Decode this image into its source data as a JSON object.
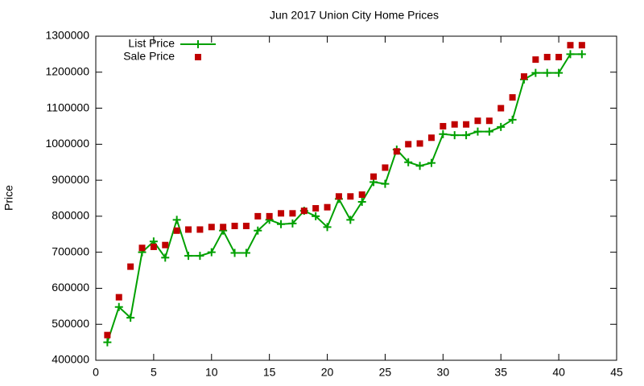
{
  "chart_data": {
    "type": "line",
    "title": "Jun 2017 Union City Home Prices",
    "y_label": "Price",
    "x": [
      1,
      2,
      3,
      4,
      5,
      6,
      7,
      8,
      9,
      10,
      11,
      12,
      13,
      14,
      15,
      16,
      17,
      18,
      19,
      20,
      21,
      22,
      23,
      24,
      25,
      26,
      27,
      28,
      29,
      30,
      31,
      32,
      33,
      34,
      35,
      36,
      37,
      38,
      39,
      40,
      41,
      42
    ],
    "series": [
      {
        "name": "List Price",
        "color": "#00a000",
        "style": "linespoints",
        "values": [
          450000,
          548000,
          518000,
          700000,
          730000,
          685000,
          790000,
          690000,
          690000,
          700000,
          760000,
          698000,
          698000,
          760000,
          790000,
          778000,
          780000,
          815000,
          800000,
          770000,
          848000,
          790000,
          840000,
          895000,
          890000,
          985000,
          950000,
          940000,
          948000,
          1028000,
          1025000,
          1025000,
          1035000,
          1035000,
          1048000,
          1068000,
          1180000,
          1198000,
          1198000,
          1198000,
          1250000,
          1250000
        ]
      },
      {
        "name": "Sale Price",
        "color": "#c00000",
        "style": "points",
        "values": [
          470000,
          575000,
          660000,
          712000,
          715000,
          720000,
          760000,
          763000,
          763000,
          770000,
          770000,
          773000,
          773000,
          800000,
          800000,
          808000,
          808000,
          815000,
          822000,
          825000,
          855000,
          855000,
          860000,
          910000,
          935000,
          980000,
          1000000,
          1002000,
          1018000,
          1050000,
          1055000,
          1055000,
          1065000,
          1065000,
          1100000,
          1130000,
          1188000,
          1235000,
          1242000,
          1242000,
          1275000,
          1275000
        ]
      }
    ],
    "xlim": [
      0,
      45
    ],
    "xticks": [
      0,
      5,
      10,
      15,
      20,
      25,
      30,
      35,
      40,
      45
    ],
    "ylim": [
      400000,
      1300000
    ],
    "yticks": [
      400000,
      500000,
      600000,
      700000,
      800000,
      900000,
      1000000,
      1100000,
      1200000,
      1300000
    ],
    "grid": false,
    "legend": "top-left"
  }
}
